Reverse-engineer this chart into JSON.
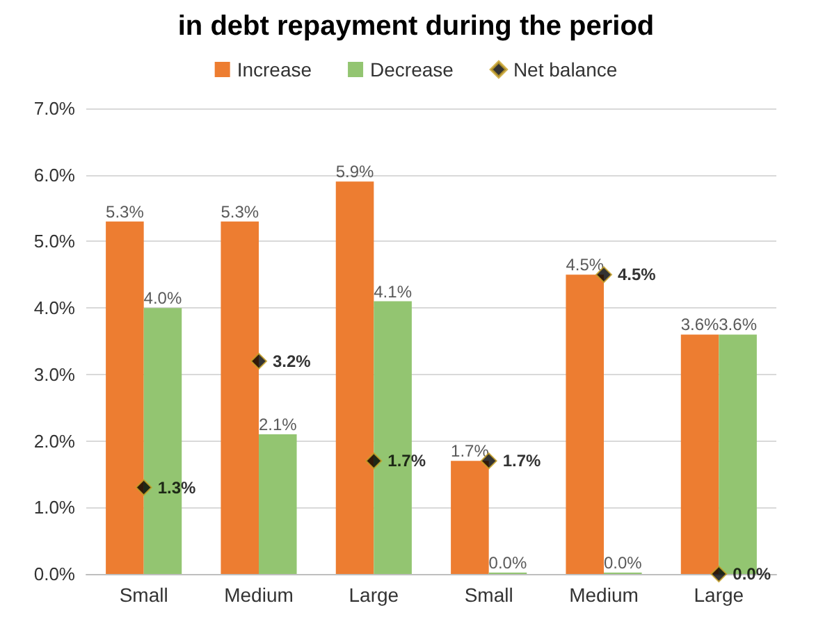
{
  "chart_data": {
    "type": "bar",
    "title": "in debt repayment during the period",
    "categories": [
      "Small",
      "Medium",
      "Large",
      "Small",
      "Medium",
      "Large"
    ],
    "series": [
      {
        "name": "Increase",
        "color": "#ed7d31",
        "values": [
          5.3,
          5.3,
          5.9,
          1.7,
          4.5,
          3.6
        ],
        "value_labels": [
          "5.3%",
          "5.3%",
          "5.9%",
          "1.7%",
          "4.5%",
          "3.6%"
        ]
      },
      {
        "name": "Decrease",
        "color": "#93c571",
        "values": [
          4.0,
          2.1,
          4.1,
          0.0,
          0.0,
          3.6
        ],
        "value_labels": [
          "4.0%",
          "2.1%",
          "4.1%",
          "0.0%",
          "0.0%",
          "3.6%"
        ]
      },
      {
        "name": "Net balance",
        "type": "scatter",
        "marker": "diamond",
        "color": "#000000",
        "values": [
          1.3,
          3.2,
          1.7,
          1.7,
          4.5,
          0.0
        ],
        "value_labels": [
          "1.3%",
          "3.2%",
          "1.7%",
          "1.7%",
          "4.5%",
          "0.0%"
        ]
      }
    ],
    "ylim": [
      0,
      7
    ],
    "yticks": [
      {
        "value": 0,
        "label": "0.0%"
      },
      {
        "value": 1,
        "label": "1.0%"
      },
      {
        "value": 2,
        "label": "2.0%"
      },
      {
        "value": 3,
        "label": "3.0%"
      },
      {
        "value": 4,
        "label": "4.0%"
      },
      {
        "value": 5,
        "label": "5.0%"
      },
      {
        "value": 6,
        "label": "6.0%"
      },
      {
        "value": 7,
        "label": "7.0%"
      }
    ],
    "grid": "y",
    "legend": "top"
  }
}
